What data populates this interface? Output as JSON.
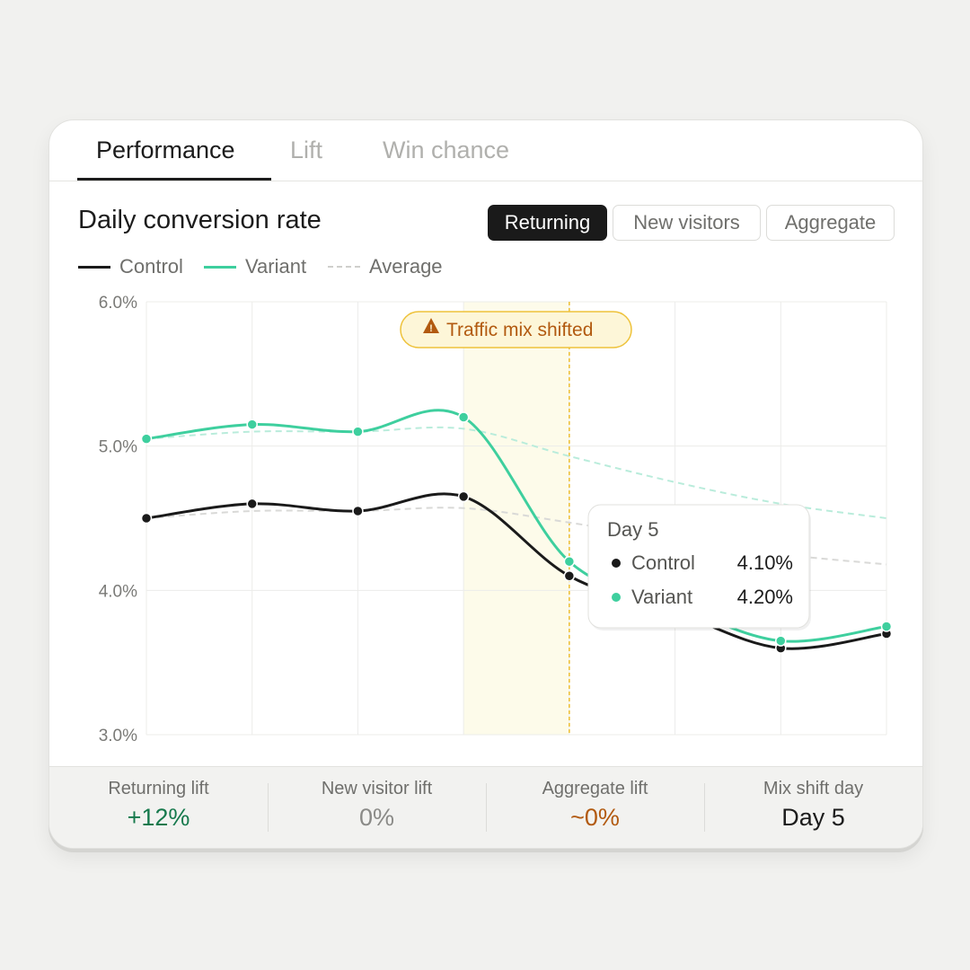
{
  "tabs": [
    {
      "label": "Performance",
      "active": true
    },
    {
      "label": "Lift",
      "active": false
    },
    {
      "label": "Win chance",
      "active": false
    }
  ],
  "panel": {
    "title": "Daily conversion rate",
    "segments": [
      {
        "label": "Returning",
        "selected": true
      },
      {
        "label": "New visitors",
        "selected": false
      },
      {
        "label": "Aggregate",
        "selected": false
      }
    ]
  },
  "legend": {
    "control": "Control",
    "variant": "Variant",
    "average": "Average"
  },
  "annotation": {
    "icon": "warning-icon",
    "label": "Traffic mix shifted"
  },
  "tooltip": {
    "title": "Day 5",
    "rows": [
      {
        "label": "Control",
        "value": "4.10%"
      },
      {
        "label": "Variant",
        "value": "4.20%"
      }
    ]
  },
  "stats": [
    {
      "label": "Returning lift",
      "value": "+12%",
      "color": "#16794c"
    },
    {
      "label": "New visitor lift",
      "value": "0%",
      "color": "#8a8a87"
    },
    {
      "label": "Aggregate lift",
      "value": "~0%",
      "color": "#b25a10"
    },
    {
      "label": "Mix shift day",
      "value": "Day 5",
      "color": "#1c1c1c"
    }
  ],
  "colors": {
    "control": "#1a1a1a",
    "variant": "#3ecf9e",
    "average_control": "#d9d9d7",
    "average_variant": "#b9ecdb",
    "highlight_band": "#fdfbea",
    "shift_line": "#eec23a",
    "annotation_bg": "#fdf6d8",
    "annotation_border": "#eec23a",
    "annotation_text": "#b25a10"
  },
  "chart_data": {
    "type": "line",
    "x": [
      1,
      2,
      3,
      4,
      5,
      6,
      7,
      8
    ],
    "yticks": [
      "6.0%",
      "5.0%",
      "4.0%",
      "3.0%"
    ],
    "ylim": [
      3.0,
      6.0
    ],
    "grid": true,
    "legend_position": "top-left",
    "series": [
      {
        "name": "Control",
        "values": [
          4.5,
          4.6,
          4.55,
          4.65,
          4.1,
          3.85,
          3.6,
          3.7
        ],
        "markers": true
      },
      {
        "name": "Variant",
        "values": [
          5.05,
          5.15,
          5.1,
          5.2,
          4.2,
          3.9,
          3.65,
          3.75
        ],
        "markers": true
      },
      {
        "name": "Average",
        "of": "Control",
        "dashed": true,
        "values": [
          4.5,
          4.55,
          4.55,
          4.57,
          4.47,
          4.35,
          4.25,
          4.18
        ]
      },
      {
        "name": "Average",
        "of": "Variant",
        "dashed": true,
        "values": [
          5.05,
          5.1,
          5.1,
          5.12,
          4.93,
          4.75,
          4.6,
          4.5
        ]
      }
    ],
    "highlight_band": [
      4,
      5
    ],
    "shift_marker_x": 5
  }
}
